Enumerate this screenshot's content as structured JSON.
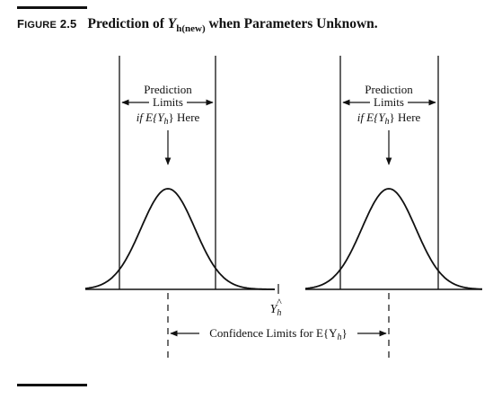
{
  "figure": {
    "label_prefix": "F",
    "label_rest": "IGURE",
    "number": "2.5",
    "title_pre": "Prediction of ",
    "title_var": "Y",
    "title_sub": "h(new)",
    "title_post": " when Parameters Unknown."
  },
  "diagram": {
    "left_note": {
      "line1": "Prediction",
      "line2": "Limits",
      "line3_pre": "if E{Y",
      "line3_sub": "h",
      "line3_post": "} Here"
    },
    "right_note": {
      "line1": "Prediction",
      "line2": "Limits",
      "line3_pre": "if E{Y",
      "line3_sub": "h",
      "line3_post": "} Here"
    },
    "center_symbol": "Y",
    "center_hat": "^",
    "center_sub": "h",
    "confidence_label_pre": "Confidence Limits for E{Y",
    "confidence_label_sub": "h",
    "confidence_label_post": "}"
  }
}
